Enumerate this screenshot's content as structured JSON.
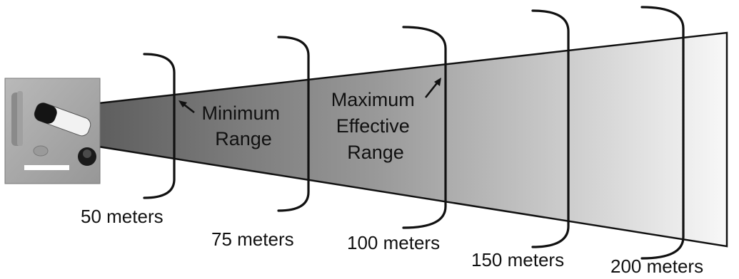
{
  "diagram": {
    "colors": {
      "cone_start": "#5e5e5e",
      "cone_end": "#f8f8f8",
      "outline": "#111111",
      "photo_background": "#a8a8a8"
    },
    "photo": {
      "icon": "photo-of-munition-parts"
    },
    "range_markers": [
      {
        "label": "50 meters"
      },
      {
        "label": "75 meters"
      },
      {
        "label": "100 meters"
      },
      {
        "label": "150 meters"
      },
      {
        "label": "200 meters"
      }
    ],
    "zone_labels": {
      "minimum_range": [
        "Minimum",
        "Range"
      ],
      "maximum_effective_range": [
        "Maximum",
        "Effective",
        "Range"
      ]
    }
  }
}
